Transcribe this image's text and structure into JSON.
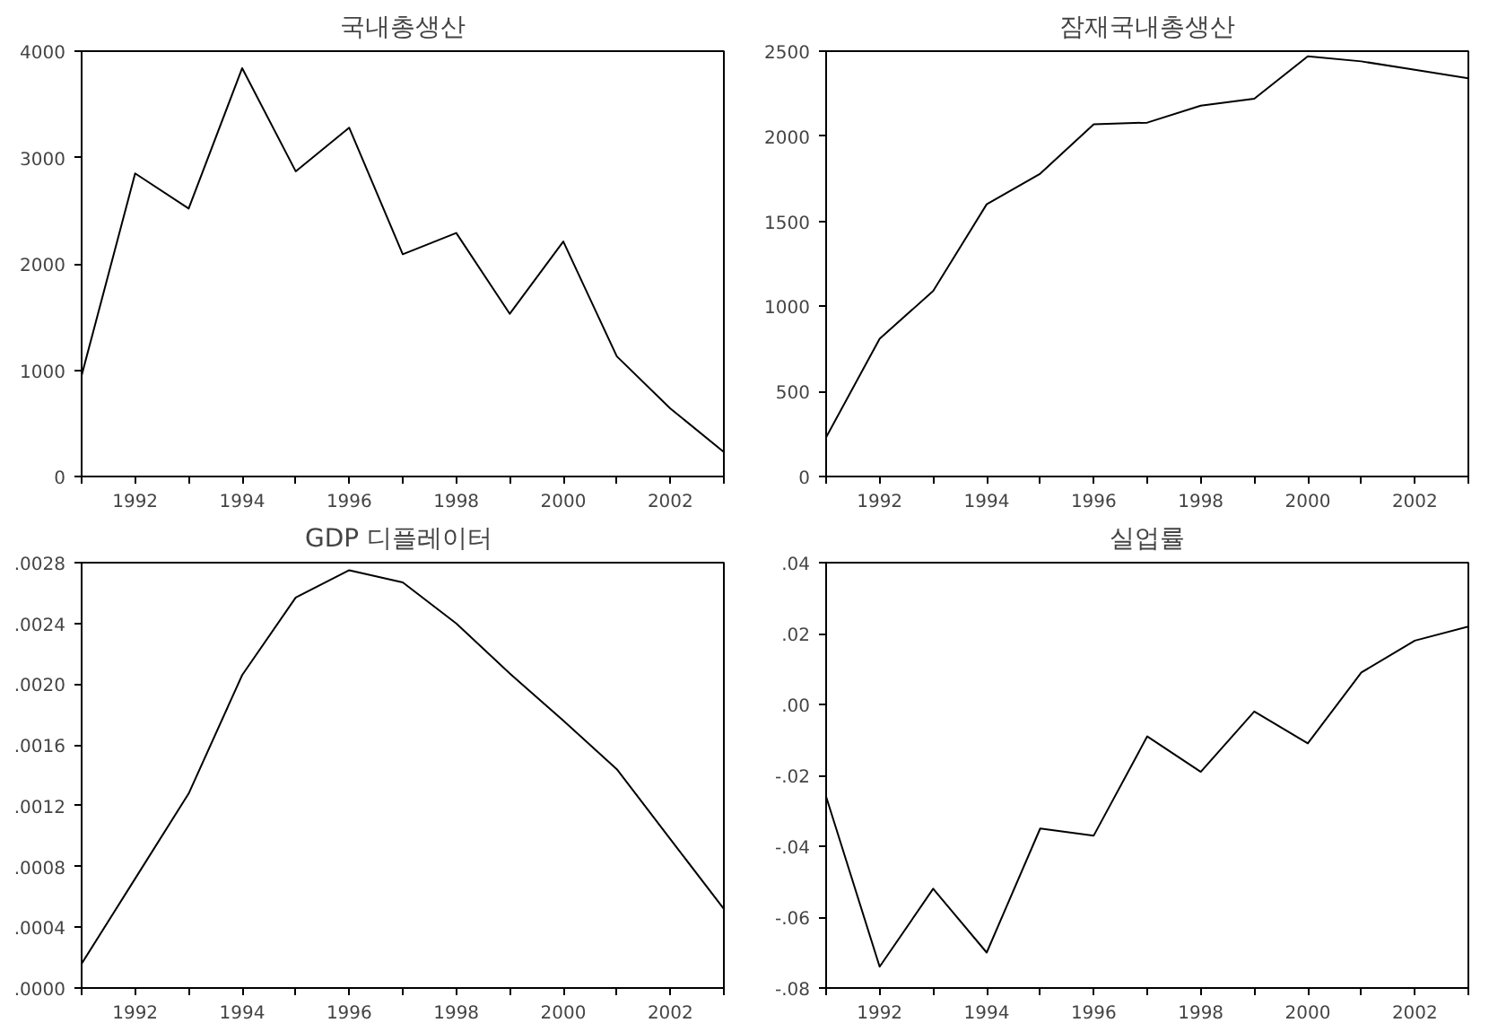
{
  "chart_data": [
    {
      "type": "line",
      "title": "국내총생산",
      "x": [
        1991,
        1992,
        1993,
        1994,
        1995,
        1996,
        1997,
        1998,
        1999,
        2000,
        2001,
        2002,
        2003
      ],
      "values": [
        950,
        2850,
        2520,
        3840,
        2870,
        3280,
        2090,
        2290,
        1530,
        2210,
        1130,
        640,
        230
      ],
      "color": "#000000",
      "xlim": [
        1991,
        2003
      ],
      "xticks": [
        {
          "value": 1991,
          "label": null
        },
        1992,
        {
          "value": 1993,
          "label": null
        },
        1994,
        {
          "value": 1995,
          "label": null
        },
        1996,
        {
          "value": 1997,
          "label": null
        },
        1998,
        {
          "value": 1999,
          "label": null
        },
        2000,
        {
          "value": 2001,
          "label": null
        },
        2002,
        {
          "value": 2003,
          "label": null
        }
      ],
      "ylim": [
        0,
        4000
      ],
      "yticks": [
        0,
        1000,
        2000,
        3000,
        4000
      ]
    },
    {
      "type": "line",
      "title": "잠재국내총생산",
      "x": [
        1991,
        1992,
        1993,
        1994,
        1995,
        1996,
        1997,
        1998,
        1999,
        2000,
        2001,
        2002,
        2003
      ],
      "values": [
        230,
        810,
        1090,
        1600,
        1780,
        2070,
        2080,
        2180,
        2220,
        2470,
        2440,
        2390,
        2340
      ],
      "color": "#000000",
      "xlim": [
        1991,
        2003
      ],
      "xticks": [
        {
          "value": 1991,
          "label": null
        },
        1992,
        {
          "value": 1993,
          "label": null
        },
        1994,
        {
          "value": 1995,
          "label": null
        },
        1996,
        {
          "value": 1997,
          "label": null
        },
        1998,
        {
          "value": 1999,
          "label": null
        },
        2000,
        {
          "value": 2001,
          "label": null
        },
        2002,
        {
          "value": 2003,
          "label": null
        }
      ],
      "ylim": [
        0,
        2500
      ],
      "yticks": [
        0,
        500,
        1000,
        1500,
        2000,
        2500
      ]
    },
    {
      "type": "line",
      "title": "GDP  디플레이터",
      "x": [
        1991,
        1992,
        1993,
        1994,
        1995,
        1996,
        1997,
        1998,
        1999,
        2000,
        2001,
        2002,
        2003
      ],
      "values": [
        0.00016,
        0.00072,
        0.00128,
        0.00206,
        0.00257,
        0.00275,
        0.00267,
        0.0024,
        0.00207,
        0.00176,
        0.00144,
        0.00098,
        0.00052
      ],
      "color": "#000000",
      "xlim": [
        1991,
        2003
      ],
      "xticks": [
        {
          "value": 1991,
          "label": null
        },
        1992,
        {
          "value": 1993,
          "label": null
        },
        1994,
        {
          "value": 1995,
          "label": null
        },
        1996,
        {
          "value": 1997,
          "label": null
        },
        1998,
        {
          "value": 1999,
          "label": null
        },
        2000,
        {
          "value": 2001,
          "label": null
        },
        2002,
        {
          "value": 2003,
          "label": null
        }
      ],
      "ylim": [
        0,
        0.0028
      ],
      "yticks": [
        {
          "value": 0,
          "label": ".0000"
        },
        {
          "value": 0.0004,
          "label": ".0004"
        },
        {
          "value": 0.0008,
          "label": ".0008"
        },
        {
          "value": 0.0012,
          "label": ".0012"
        },
        {
          "value": 0.0016,
          "label": ".0016"
        },
        {
          "value": 0.002,
          "label": ".0020"
        },
        {
          "value": 0.0024,
          "label": ".0024"
        },
        {
          "value": 0.0028,
          "label": ".0028"
        }
      ]
    },
    {
      "type": "line",
      "title": "실업률",
      "x": [
        1991,
        1992,
        1993,
        1994,
        1995,
        1996,
        1997,
        1998,
        1999,
        2000,
        2001,
        2002,
        2003
      ],
      "values": [
        -0.026,
        -0.074,
        -0.052,
        -0.07,
        -0.035,
        -0.037,
        -0.009,
        -0.019,
        -0.002,
        -0.011,
        0.009,
        0.018,
        0.022
      ],
      "color": "#000000",
      "xlim": [
        1991,
        2003
      ],
      "xticks": [
        {
          "value": 1991,
          "label": null
        },
        1992,
        {
          "value": 1993,
          "label": null
        },
        1994,
        {
          "value": 1995,
          "label": null
        },
        1996,
        {
          "value": 1997,
          "label": null
        },
        1998,
        {
          "value": 1999,
          "label": null
        },
        2000,
        {
          "value": 2001,
          "label": null
        },
        2002,
        {
          "value": 2003,
          "label": null
        }
      ],
      "ylim": [
        -0.08,
        0.04
      ],
      "yticks": [
        {
          "value": -0.08,
          "label": "-.08"
        },
        {
          "value": -0.06,
          "label": "-.06"
        },
        {
          "value": -0.04,
          "label": "-.04"
        },
        {
          "value": -0.02,
          "label": "-.02"
        },
        {
          "value": 0,
          "label": ".00"
        },
        {
          "value": 0.02,
          "label": ".02"
        },
        {
          "value": 0.04,
          "label": ".04"
        }
      ]
    }
  ]
}
